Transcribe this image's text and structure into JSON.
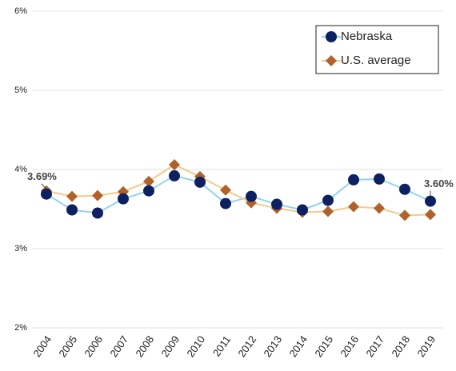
{
  "chart_data": {
    "type": "line",
    "categories": [
      "2004",
      "2005",
      "2006",
      "2007",
      "2008",
      "2009",
      "2010",
      "2011",
      "2012",
      "2013",
      "2014",
      "2015",
      "2016",
      "2017",
      "2018",
      "2019"
    ],
    "series": [
      {
        "name": "Nebraska",
        "color": "#0d2060",
        "line_color": "#92d3f0",
        "marker": "circle",
        "values": [
          3.69,
          3.49,
          3.45,
          3.63,
          3.73,
          3.92,
          3.84,
          3.57,
          3.66,
          3.56,
          3.49,
          3.61,
          3.87,
          3.88,
          3.75,
          3.6
        ],
        "value_labels": [
          "3.69%",
          null,
          null,
          null,
          null,
          null,
          null,
          null,
          null,
          null,
          null,
          null,
          null,
          null,
          null,
          "3.60%"
        ]
      },
      {
        "name": "U.S. average",
        "color": "#b0622a",
        "line_color": "#f6c98c",
        "marker": "diamond",
        "values": [
          3.73,
          3.66,
          3.67,
          3.72,
          3.85,
          4.06,
          3.91,
          3.74,
          3.58,
          3.51,
          3.46,
          3.47,
          3.53,
          3.51,
          3.42,
          3.43
        ]
      }
    ],
    "ylim": [
      2,
      6
    ],
    "yticks": [
      {
        "value": 2,
        "label": "2%"
      },
      {
        "value": 3,
        "label": "3%"
      },
      {
        "value": 4,
        "label": "4%"
      },
      {
        "value": 5,
        "label": "5%"
      },
      {
        "value": 6,
        "label": "6%"
      }
    ],
    "grid": true,
    "legend": "top-right"
  }
}
